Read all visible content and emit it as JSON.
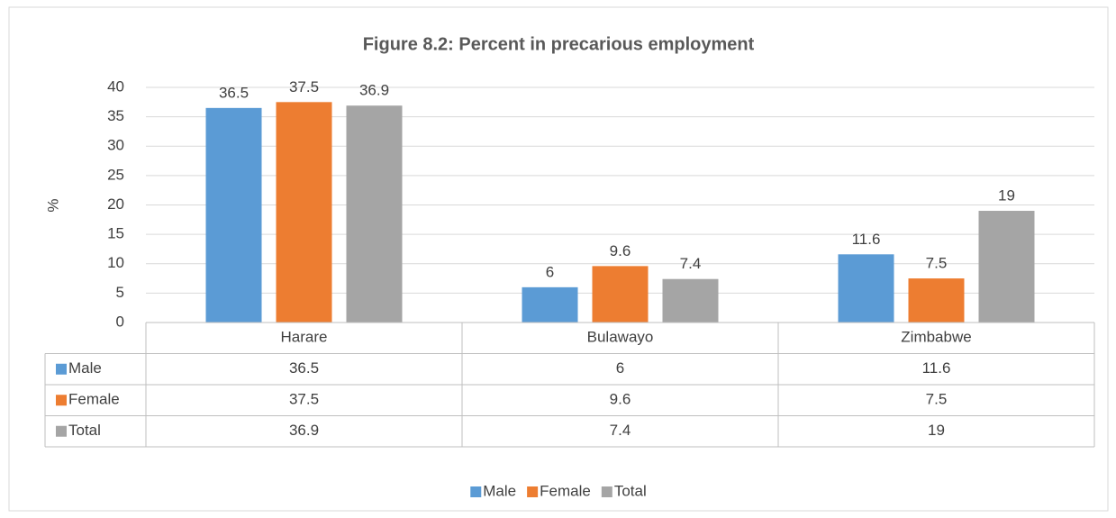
{
  "chart_data": {
    "type": "bar",
    "title": "Figure 8.2: Percent in precarious employment",
    "y_label": "%",
    "categories": [
      "Harare",
      "Bulawayo",
      "Zimbabwe"
    ],
    "series": [
      {
        "name": "Male",
        "color": "#5b9bd5",
        "values": [
          36.5,
          6,
          11.6
        ]
      },
      {
        "name": "Female",
        "color": "#ed7d31",
        "values": [
          37.5,
          9.6,
          7.5
        ]
      },
      {
        "name": "Total",
        "color": "#a5a5a5",
        "values": [
          36.9,
          7.4,
          19
        ]
      }
    ],
    "ylim": [
      0,
      40
    ],
    "yticks": [
      0,
      5,
      10,
      15,
      20,
      25,
      30,
      35,
      40
    ],
    "grid": true,
    "data_table": true,
    "legend": "bottom"
  }
}
